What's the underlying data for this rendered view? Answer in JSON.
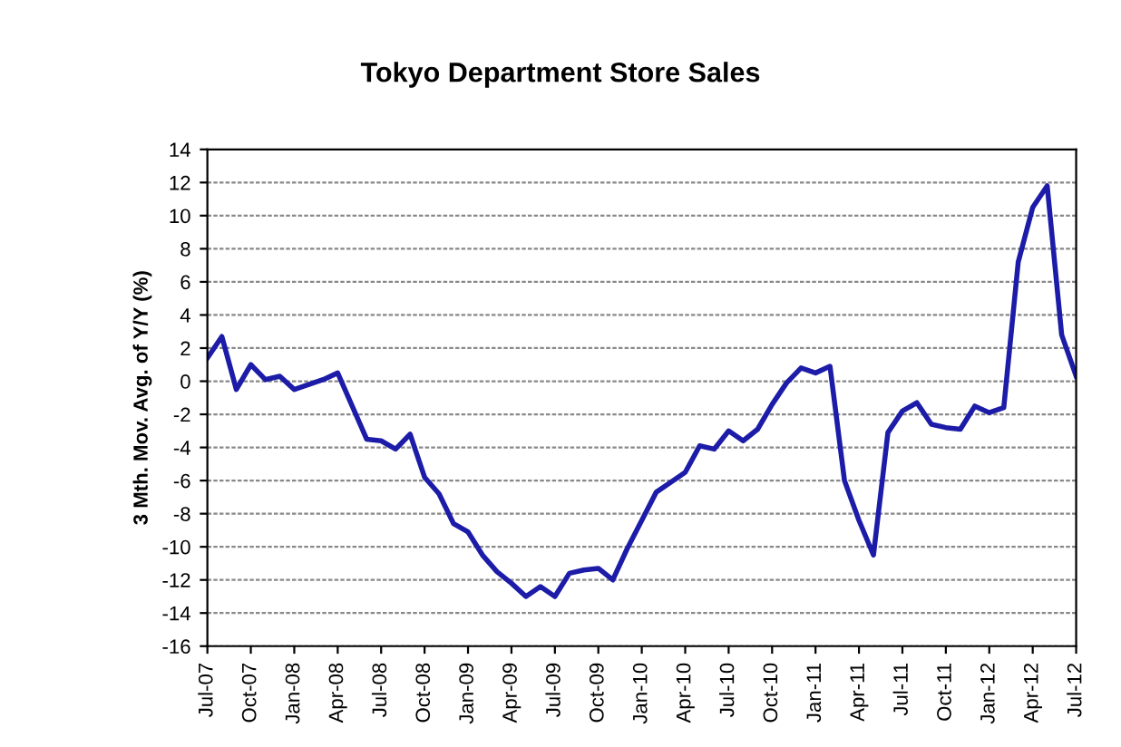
{
  "chart_data": {
    "type": "line",
    "title": "Tokyo Department Store Sales",
    "ylabel": "3 Mth. Mov. Avg. of Y/Y (%)",
    "x": [
      "2007-07",
      "2007-08",
      "2007-09",
      "2007-10",
      "2007-11",
      "2007-12",
      "2008-01",
      "2008-02",
      "2008-03",
      "2008-04",
      "2008-05",
      "2008-06",
      "2008-07",
      "2008-08",
      "2008-09",
      "2008-10",
      "2008-11",
      "2008-12",
      "2009-01",
      "2009-02",
      "2009-03",
      "2009-04",
      "2009-05",
      "2009-06",
      "2009-07",
      "2009-08",
      "2009-09",
      "2009-10",
      "2009-11",
      "2009-12",
      "2010-01",
      "2010-02",
      "2010-03",
      "2010-04",
      "2010-05",
      "2010-06",
      "2010-07",
      "2010-08",
      "2010-09",
      "2010-10",
      "2010-11",
      "2010-12",
      "2011-01",
      "2011-02",
      "2011-03",
      "2011-04",
      "2011-05",
      "2011-06",
      "2011-07",
      "2011-08",
      "2011-09",
      "2011-10",
      "2011-11",
      "2011-12",
      "2012-01",
      "2012-02",
      "2012-03",
      "2012-04",
      "2012-05",
      "2012-06",
      "2012-07"
    ],
    "series": [
      {
        "color": "#1c1ca8",
        "values": [
          1.4,
          2.7,
          -0.5,
          1.0,
          0.1,
          0.3,
          -0.5,
          -0.2,
          0.1,
          0.5,
          -1.5,
          -3.5,
          -3.6,
          -4.1,
          -3.2,
          -5.8,
          -6.8,
          -8.6,
          -9.1,
          -10.5,
          -11.5,
          -12.2,
          -13.0,
          -12.4,
          -13.0,
          -11.6,
          -11.4,
          -11.3,
          -12.0,
          -10.1,
          -8.4,
          -6.7,
          -6.1,
          -5.5,
          -3.9,
          -4.1,
          -3.0,
          -3.6,
          -2.9,
          -1.4,
          -0.1,
          0.8,
          0.5,
          0.9,
          -6.0,
          -8.4,
          -10.5,
          -3.1,
          -1.8,
          -1.3,
          -2.6,
          -2.8,
          -2.9,
          -1.5,
          -1.9,
          -1.6,
          7.2,
          10.5,
          11.8,
          2.8,
          0.3
        ]
      }
    ],
    "ylim": [
      -16,
      14
    ],
    "yticks": [
      -16,
      -14,
      -12,
      -10,
      -8,
      -6,
      -4,
      -2,
      0,
      2,
      4,
      6,
      8,
      10,
      12,
      14
    ],
    "xlim": [
      "2007-07",
      "2012-07"
    ],
    "xticks": [
      {
        "value": "2007-07",
        "label": "Jul-07"
      },
      {
        "value": "2007-10",
        "label": "Oct-07"
      },
      {
        "value": "2008-01",
        "label": "Jan-08"
      },
      {
        "value": "2008-04",
        "label": "Apr-08"
      },
      {
        "value": "2008-07",
        "label": "Jul-08"
      },
      {
        "value": "2008-10",
        "label": "Oct-08"
      },
      {
        "value": "2009-01",
        "label": "Jan-09"
      },
      {
        "value": "2009-04",
        "label": "Apr-09"
      },
      {
        "value": "2009-07",
        "label": "Jul-09"
      },
      {
        "value": "2009-10",
        "label": "Oct-09"
      },
      {
        "value": "2010-01",
        "label": "Jan-10"
      },
      {
        "value": "2010-04",
        "label": "Apr-10"
      },
      {
        "value": "2010-07",
        "label": "Jul-10"
      },
      {
        "value": "2010-10",
        "label": "Oct-10"
      },
      {
        "value": "2011-01",
        "label": "Jan-11"
      },
      {
        "value": "2011-04",
        "label": "Apr-11"
      },
      {
        "value": "2011-07",
        "label": "Jul-11"
      },
      {
        "value": "2011-10",
        "label": "Oct-11"
      },
      {
        "value": "2012-01",
        "label": "Jan-12"
      },
      {
        "value": "2012-04",
        "label": "Apr-12"
      },
      {
        "value": "2012-07",
        "label": "Jul-12"
      }
    ],
    "grid": "y",
    "legend": false,
    "marker": "none",
    "line_style": "solid"
  }
}
